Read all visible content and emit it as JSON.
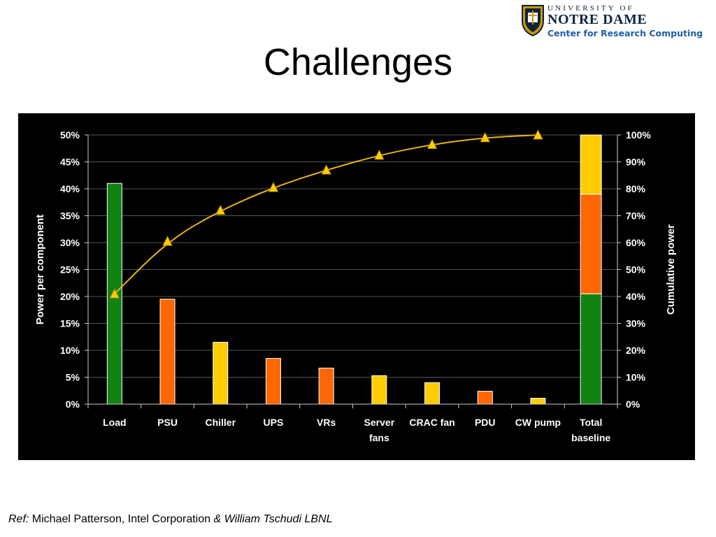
{
  "slide": {
    "title": "Challenges"
  },
  "logo": {
    "university_of": "UNIVERSITY OF",
    "notre_dame": "NOTRE DAME",
    "center": "Center for Research Computing"
  },
  "reference": {
    "ref_label": "Ref:",
    "text": " Michael Patterson, Intel Corporation ",
    "italic_tail": "& William Tschudi LBNL"
  },
  "colors": {
    "background": "#000000",
    "green": "#128212",
    "orange": "#ff6600",
    "yellow": "#ffcc00",
    "line": "#e8b21a",
    "text": "#ffffff"
  },
  "chart_data": {
    "type": "bar",
    "categories": [
      {
        "line1": "Load",
        "line2": ""
      },
      {
        "line1": "PSU",
        "line2": ""
      },
      {
        "line1": "Chiller",
        "line2": ""
      },
      {
        "line1": "UPS",
        "line2": ""
      },
      {
        "line1": "VRs",
        "line2": ""
      },
      {
        "line1": "Server",
        "line2": "fans"
      },
      {
        "line1": "CRAC fan",
        "line2": ""
      },
      {
        "line1": "PDU",
        "line2": ""
      },
      {
        "line1": "CW pump",
        "line2": ""
      },
      {
        "line1": "Total",
        "line2": "baseline"
      }
    ],
    "bars": {
      "values": [
        41,
        19.5,
        11.5,
        8.5,
        6.7,
        5.3,
        4,
        2.4,
        1.1
      ],
      "colors": [
        "green",
        "orange",
        "yellow",
        "orange",
        "orange",
        "yellow",
        "yellow",
        "orange",
        "yellow"
      ]
    },
    "total_baseline_stack": [
      {
        "value": 20.5,
        "color": "green"
      },
      {
        "value": 18.5,
        "color": "orange"
      },
      {
        "value": 11,
        "color": "yellow"
      }
    ],
    "cumulative_series": {
      "type": "line",
      "marker": "triangle",
      "axis": "right",
      "values": [
        41,
        60.5,
        72,
        80.5,
        87,
        92.5,
        96.5,
        99,
        100
      ]
    },
    "y_left": {
      "label": "Power per component",
      "min": 0,
      "max": 50,
      "step": 5,
      "ticks": [
        "0%",
        "5%",
        "10%",
        "15%",
        "20%",
        "25%",
        "30%",
        "35%",
        "40%",
        "45%",
        "50%"
      ]
    },
    "y_right": {
      "label": "Cumulative power",
      "min": 0,
      "max": 100,
      "step": 10,
      "ticks": [
        "0%",
        "10%",
        "20%",
        "30%",
        "40%",
        "50%",
        "60%",
        "70%",
        "80%",
        "90%",
        "100%"
      ]
    },
    "grid": true,
    "legend": "none"
  }
}
